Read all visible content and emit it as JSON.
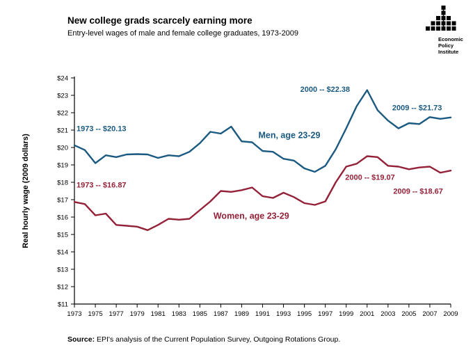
{
  "logo": {
    "name": "Economic Policy Institute",
    "lines": [
      "Economic",
      "Policy",
      "Institute"
    ]
  },
  "source": {
    "label": "Source:",
    "text": " EPI's analysis of the Current Population Survey, Outgoing Rotations Group."
  },
  "chart_data": {
    "type": "line",
    "title": "New college grads scarcely earning more",
    "subtitle": "Entry-level wages of male and female college graduates, 1973-2009",
    "ylabel": "Real hourly wage (2009 dollars)",
    "ylim": [
      11,
      24
    ],
    "grid": false,
    "legend": "inline-annotations",
    "x": [
      1973,
      1974,
      1975,
      1976,
      1977,
      1978,
      1979,
      1980,
      1981,
      1982,
      1983,
      1984,
      1985,
      1986,
      1987,
      1988,
      1989,
      1990,
      1991,
      1992,
      1993,
      1994,
      1995,
      1996,
      1997,
      1998,
      1999,
      2000,
      2001,
      2002,
      2003,
      2004,
      2005,
      2006,
      2007,
      2008,
      2009
    ],
    "x_tick_labels": [
      "1973",
      "1975",
      "1977",
      "1979",
      "1981",
      "1983",
      "1985",
      "1987",
      "1989",
      "1991",
      "1993",
      "1995",
      "1997",
      "1999",
      "2001",
      "2003",
      "2005",
      "2007",
      "2009"
    ],
    "y_tick_values": [
      11,
      12,
      13,
      14,
      15,
      16,
      17,
      18,
      19,
      20,
      21,
      22,
      23,
      24
    ],
    "y_tick_labels": [
      "$11",
      "$12",
      "$13",
      "$14",
      "$15",
      "$16",
      "$17",
      "$18",
      "$19",
      "$20",
      "$21",
      "$22",
      "$23",
      "$24"
    ],
    "series": [
      {
        "name": "Men, age 23-29",
        "color": "#1B5A80",
        "values": [
          20.13,
          19.85,
          19.1,
          19.55,
          19.45,
          19.6,
          19.62,
          19.6,
          19.4,
          19.55,
          19.5,
          19.75,
          20.25,
          20.9,
          20.8,
          21.2,
          20.35,
          20.3,
          19.8,
          19.75,
          19.35,
          19.25,
          18.8,
          18.6,
          18.95,
          19.9,
          21.1,
          22.38,
          23.3,
          22.15,
          21.55,
          21.1,
          21.4,
          21.35,
          21.75,
          21.65,
          21.73
        ]
      },
      {
        "name": "Women, age 23-29",
        "color": "#942138",
        "values": [
          16.87,
          16.75,
          16.1,
          16.2,
          15.55,
          15.5,
          15.45,
          15.25,
          15.55,
          15.9,
          15.85,
          15.9,
          16.4,
          16.9,
          17.5,
          17.45,
          17.55,
          17.7,
          17.2,
          17.1,
          17.4,
          17.15,
          16.8,
          16.7,
          16.9,
          18.0,
          18.9,
          19.07,
          19.5,
          19.45,
          18.95,
          18.9,
          18.75,
          18.85,
          18.9,
          18.55,
          18.67
        ]
      }
    ],
    "annotations": [
      {
        "text": "1973 -- $20.13",
        "x": 1973.2,
        "y": 20.95,
        "color": "#1B5A80",
        "size": 11
      },
      {
        "text": "1973 -- $16.87",
        "x": 1973.2,
        "y": 17.7,
        "color": "#942138",
        "size": 11
      },
      {
        "text": "Men, age 23-29",
        "x": 1990.6,
        "y": 20.55,
        "color": "#1B5A80",
        "size": 12.5
      },
      {
        "text": "Women, age 23-29",
        "x": 1986.3,
        "y": 15.9,
        "color": "#942138",
        "size": 12.5
      },
      {
        "text": "2000 -- $22.38",
        "x": 1994.6,
        "y": 23.2,
        "color": "#1B5A80",
        "size": 11
      },
      {
        "text": "2009 -- $21.73",
        "x": 2003.4,
        "y": 22.15,
        "color": "#1B5A80",
        "size": 11
      },
      {
        "text": "2000 -- $19.07",
        "x": 1998.9,
        "y": 18.15,
        "color": "#942138",
        "size": 11
      },
      {
        "text": "2009 -- $18.67",
        "x": 2003.5,
        "y": 17.35,
        "color": "#942138",
        "size": 11
      }
    ]
  }
}
